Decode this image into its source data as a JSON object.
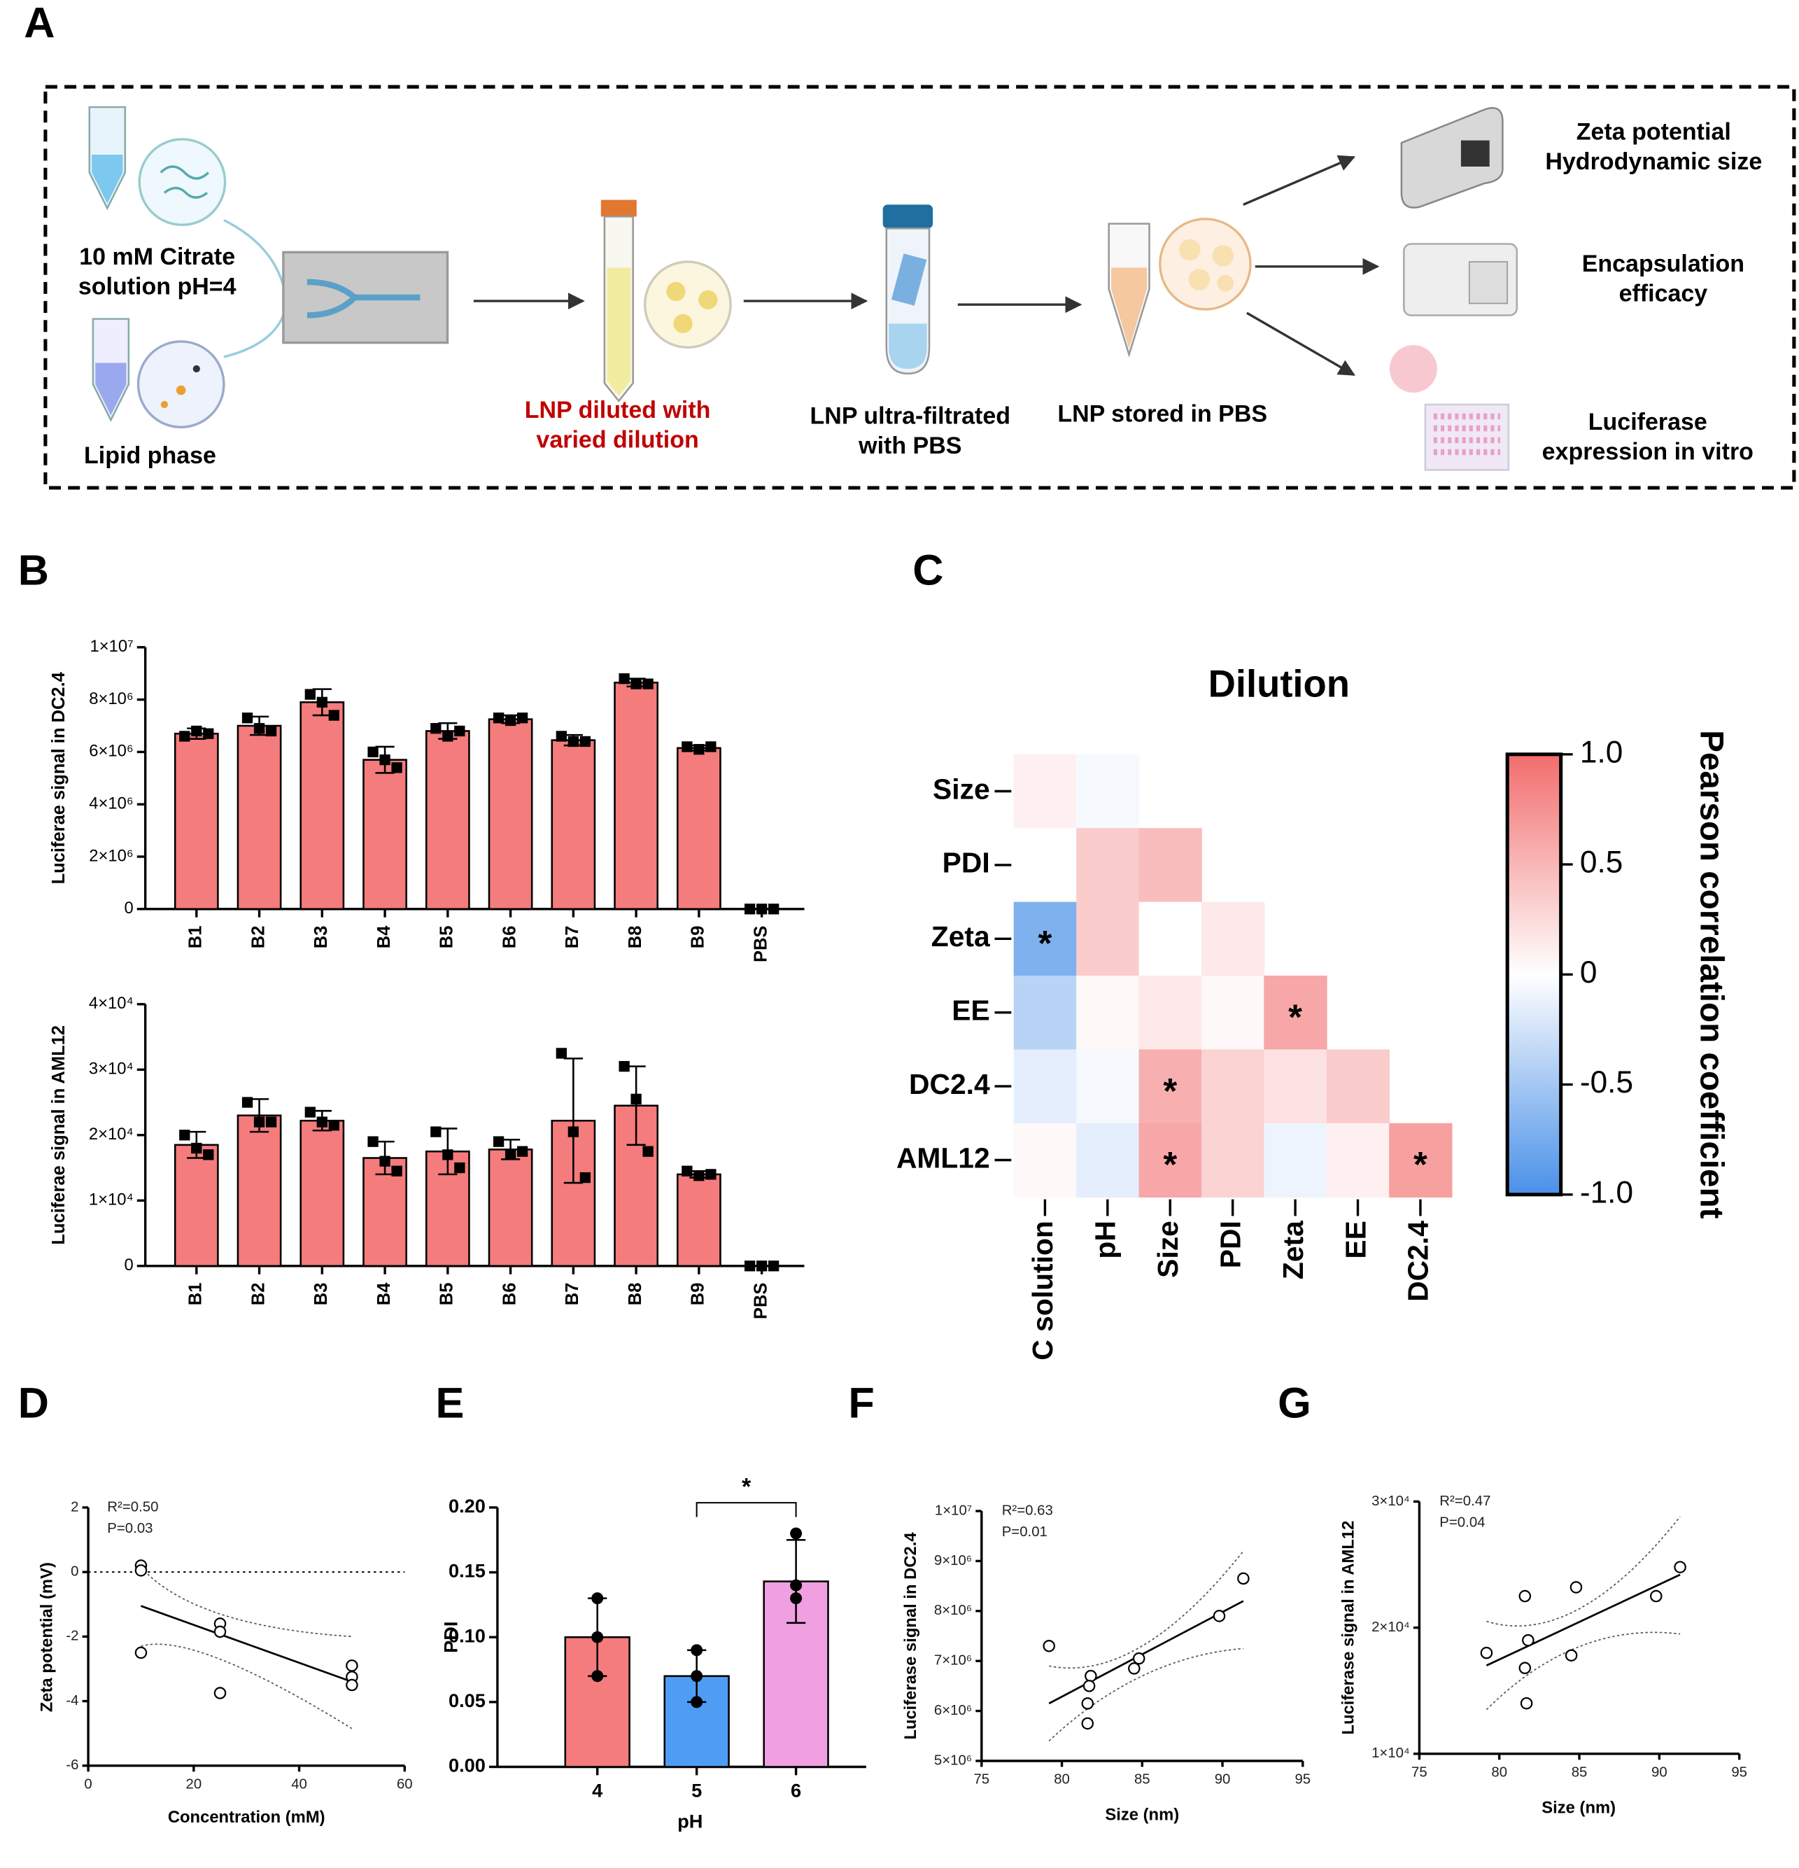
{
  "schematic": {
    "panel_label": "A",
    "citrate": [
      "10 mM Citrate",
      "solution pH=4"
    ],
    "lipid": "Lipid phase",
    "diluted": [
      "LNP diluted with",
      "varied dilution"
    ],
    "ultra": [
      "LNP ultra-filtrated",
      "with PBS"
    ],
    "stored": "LNP stored in PBS",
    "zeta": [
      "Zeta potential",
      "Hydrodynamic size"
    ],
    "ee": [
      "Encapsulation",
      "efficacy"
    ],
    "luc": [
      "Luciferase",
      "expression in vitro"
    ]
  },
  "chart_data": [
    {
      "type": "bar",
      "panel_label": "B",
      "y_label": "Luciferae signal in DC2.4",
      "color": "#f47c7c",
      "categories": [
        "B1",
        "B2",
        "B3",
        "B4",
        "B5",
        "B6",
        "B7",
        "B8",
        "B9",
        "PBS"
      ],
      "values": [
        6700000,
        7000000,
        7900000,
        5700000,
        6800000,
        7250000,
        6450000,
        8650000,
        6150000,
        0
      ],
      "errors": [
        200000,
        350000,
        500000,
        500000,
        300000,
        150000,
        200000,
        150000,
        100000,
        0
      ],
      "points": [
        [
          6600000,
          6800000,
          6700000
        ],
        [
          7300000,
          6900000,
          6800000
        ],
        [
          8200000,
          7900000,
          7400000
        ],
        [
          6000000,
          5700000,
          5400000
        ],
        [
          6900000,
          6600000,
          6800000
        ],
        [
          7300000,
          7200000,
          7300000
        ],
        [
          6600000,
          6400000,
          6400000
        ],
        [
          8800000,
          8600000,
          8600000
        ],
        [
          6200000,
          6100000,
          6200000
        ],
        [
          0,
          0,
          0
        ]
      ],
      "ylim": [
        0,
        10000000
      ],
      "yticks": [
        0,
        {
          "value": 2000000,
          "label": "2×10⁶"
        },
        {
          "value": 4000000,
          "label": "4×10⁶"
        },
        {
          "value": 6000000,
          "label": "6×10⁶"
        },
        {
          "value": 8000000,
          "label": "8×10⁶"
        },
        {
          "value": 10000000,
          "label": "1×10⁷"
        }
      ]
    },
    {
      "type": "bar",
      "y_label": "Luciferae signal in AML12",
      "color": "#f47c7c",
      "categories": [
        "B1",
        "B2",
        "B3",
        "B4",
        "B5",
        "B6",
        "B7",
        "B8",
        "B9",
        "PBS"
      ],
      "values": [
        18500,
        23000,
        22200,
        16500,
        17500,
        17800,
        22200,
        24500,
        14000,
        0
      ],
      "errors": [
        2000,
        2500,
        1500,
        2500,
        3500,
        1500,
        9500,
        6000,
        500,
        0
      ],
      "points": [
        [
          20000,
          18000,
          17000
        ],
        [
          25000,
          22000,
          22000
        ],
        [
          23500,
          22000,
          21500
        ],
        [
          19000,
          16000,
          14500
        ],
        [
          20500,
          17000,
          15000
        ],
        [
          19000,
          17000,
          17500
        ],
        [
          32500,
          20500,
          13500
        ],
        [
          30500,
          25500,
          17500
        ],
        [
          14500,
          13800,
          14000
        ],
        [
          0,
          0,
          0
        ]
      ],
      "ylim": [
        0,
        40000
      ],
      "yticks": [
        0,
        {
          "value": 10000,
          "label": "1×10⁴"
        },
        {
          "value": 20000,
          "label": "2×10⁴"
        },
        {
          "value": 30000,
          "label": "3×10⁴"
        },
        {
          "value": 40000,
          "label": "4×10⁴"
        }
      ]
    },
    {
      "type": "heatmap",
      "panel_label": "C",
      "title": "Dilution",
      "rows": [
        "Size",
        "PDI",
        "Zeta",
        "EE",
        "DC2.4",
        "AML12"
      ],
      "columns": [
        "C solution",
        "pH",
        "Size",
        "PDI",
        "Zeta",
        "EE",
        "DC2.4"
      ],
      "values": [
        [
          0.1,
          -0.05
        ],
        [
          0,
          0.35,
          0.45
        ],
        [
          -0.7,
          0.35,
          0,
          0.15
        ],
        [
          -0.4,
          0.05,
          0.15,
          0.05,
          0.6
        ],
        [
          -0.15,
          -0.05,
          0.55,
          0.3,
          0.2,
          0.35
        ],
        [
          0.05,
          -0.15,
          0.6,
          0.3,
          -0.1,
          0.1,
          0.65
        ]
      ],
      "cell_labels": [
        [
          null,
          null
        ],
        [
          null,
          null,
          null
        ],
        [
          "*",
          null,
          null,
          null
        ],
        [
          null,
          null,
          null,
          null,
          "*"
        ],
        [
          null,
          null,
          "*",
          null,
          null,
          null
        ],
        [
          null,
          null,
          "*",
          null,
          null,
          null,
          "*"
        ]
      ],
      "colorbar": {
        "label": "Pearson correlation coefficient",
        "lim": [
          -1,
          1
        ],
        "colors": [
          "#4a90e8",
          "#ffffff",
          "#f26d6d"
        ],
        "ticks": [
          {
            "value": 1,
            "label": "1.0"
          },
          0.5,
          0,
          -0.5,
          {
            "value": -1,
            "label": "-1.0"
          }
        ]
      }
    },
    {
      "type": "scatter",
      "panel_label": "D",
      "x_label": "Concentration (mM)",
      "y_label": "Zeta potential (mV)",
      "x": [
        10,
        10,
        10,
        25,
        25,
        25,
        50,
        50,
        50
      ],
      "y": [
        0.2,
        0.05,
        -2.5,
        -1.6,
        -1.85,
        -3.75,
        -2.9,
        -3.25,
        -3.5
      ],
      "fit": {
        "x": [
          10,
          50
        ],
        "y": [
          -1.05,
          -3.4
        ]
      },
      "band_upper": {
        "x": [
          10,
          25,
          50
        ],
        "y": [
          0.15,
          -1.3,
          -2.0
        ]
      },
      "band_lower": {
        "x": [
          10,
          25,
          50
        ],
        "y": [
          -2.3,
          -2.7,
          -4.85
        ]
      },
      "hline": 0,
      "annotations": [
        "R²=0.50",
        "P=0.03"
      ],
      "xlim": [
        0,
        60
      ],
      "xticks": [
        0,
        20,
        40,
        60
      ],
      "ylim": [
        -6,
        2
      ],
      "yticks": [
        -6,
        -4,
        -2,
        0,
        2
      ]
    },
    {
      "type": "bar",
      "panel_label": "E",
      "x_label": "pH",
      "y_label": "PDI",
      "categories": [
        "4",
        "5",
        "6"
      ],
      "colors": [
        "#f47c7c",
        "#4f9cf5",
        "#f0a0e0"
      ],
      "values": [
        0.1,
        0.07,
        0.143
      ],
      "errors": [
        0.03,
        0.02,
        0.032
      ],
      "points": [
        [
          0.13,
          0.1,
          0.07
        ],
        [
          0.09,
          0.07,
          0.05
        ],
        [
          0.18,
          0.14,
          0.13
        ]
      ],
      "significance": {
        "label": "*",
        "between": [
          "5",
          "6"
        ]
      },
      "ylim": [
        0,
        0.2
      ],
      "yticks": [
        {
          "value": 0,
          "label": "0.00"
        },
        0.05,
        {
          "value": 0.1,
          "label": "0.10"
        },
        0.15,
        {
          "value": 0.2,
          "label": "0.20"
        }
      ]
    },
    {
      "type": "scatter",
      "panel_label": "F",
      "x_label": "Size (nm)",
      "y_label": "Luciferase signal in DC2.4",
      "x": [
        79.2,
        81.8,
        81.7,
        81.6,
        81.6,
        84.5,
        84.8,
        89.8,
        91.3
      ],
      "y": [
        7300000,
        6700000,
        6500000,
        6150000,
        5750000,
        6850000,
        7050000,
        7900000,
        8650000
      ],
      "fit": {
        "x": [
          79.2,
          91.3
        ],
        "y": [
          6150000,
          8200000
        ]
      },
      "band_upper": {
        "x": [
          79.2,
          85,
          91.3
        ],
        "y": [
          6900000,
          7300000,
          9200000
        ]
      },
      "band_lower": {
        "x": [
          79.2,
          85,
          91.3
        ],
        "y": [
          5400000,
          6700000,
          7250000
        ]
      },
      "annotations": [
        "R²=0.63",
        "P=0.01"
      ],
      "xlim": [
        75,
        95
      ],
      "xticks": [
        75,
        80,
        85,
        90,
        95
      ],
      "ylim": [
        5000000,
        10000000
      ],
      "yticks": [
        {
          "value": 5000000,
          "label": "5×10⁶"
        },
        {
          "value": 6000000,
          "label": "6×10⁶"
        },
        {
          "value": 7000000,
          "label": "7×10⁶"
        },
        {
          "value": 8000000,
          "label": "8×10⁶"
        },
        {
          "value": 9000000,
          "label": "9×10⁶"
        },
        {
          "value": 10000000,
          "label": "1×10⁷"
        }
      ]
    },
    {
      "type": "scatter",
      "panel_label": "G",
      "x_label": "Size (nm)",
      "y_label": "Luciferase signal in AML12",
      "x": [
        79.2,
        81.6,
        81.8,
        81.6,
        81.7,
        84.5,
        84.8,
        89.8,
        91.3
      ],
      "y": [
        18000,
        22500,
        19000,
        16800,
        14000,
        17800,
        23200,
        22500,
        24800
      ],
      "fit": {
        "x": [
          79.2,
          91.3
        ],
        "y": [
          17000,
          24200
        ]
      },
      "band_upper": {
        "x": [
          79.2,
          85,
          91.3
        ],
        "y": [
          20500,
          21500,
          28800
        ]
      },
      "band_lower": {
        "x": [
          79.2,
          85,
          91.3
        ],
        "y": [
          13500,
          18500,
          19500
        ]
      },
      "annotations": [
        "R²=0.47",
        "P=0.04"
      ],
      "xlim": [
        75,
        95
      ],
      "xticks": [
        75,
        80,
        85,
        90,
        95
      ],
      "ylim": [
        10000,
        30000
      ],
      "yticks": [
        {
          "value": 10000,
          "label": "1×10⁴"
        },
        {
          "value": 20000,
          "label": "2×10⁴"
        },
        {
          "value": 30000,
          "label": "3×10⁴"
        }
      ]
    }
  ]
}
